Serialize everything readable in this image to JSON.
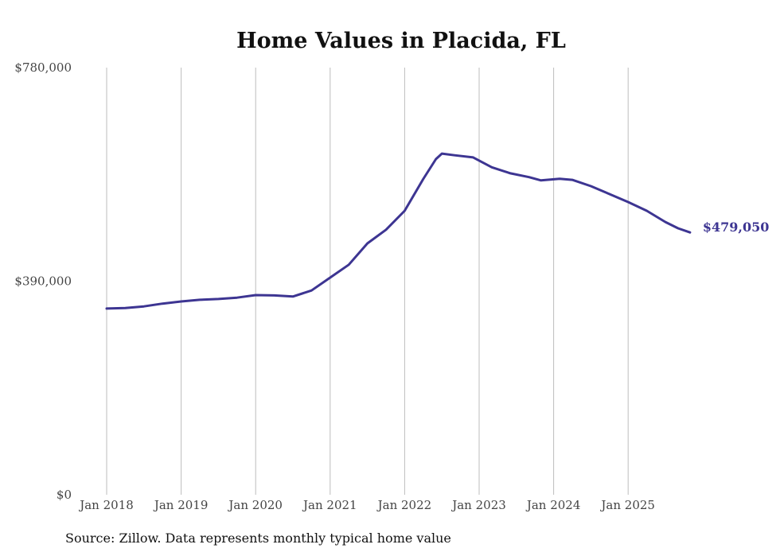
{
  "chart_data": {
    "type": "line",
    "title": "Home Values in Placida, FL",
    "xlabel": "",
    "ylabel": "",
    "ylim": [
      0,
      780000
    ],
    "y_ticks": [
      "$0",
      "$390,000",
      "$780,000"
    ],
    "y_tick_values": [
      0,
      390000,
      780000
    ],
    "x_ticks": [
      "Jan 2018",
      "Jan 2019",
      "Jan 2020",
      "Jan 2021",
      "Jan 2022",
      "Jan 2023",
      "Jan 2024",
      "Jan 2025"
    ],
    "x_tick_values": [
      2018,
      2019,
      2020,
      2021,
      2022,
      2023,
      2024,
      2025
    ],
    "xlim": [
      2018,
      2026
    ],
    "grid": "vertical",
    "series": [
      {
        "name": "Typical home value",
        "color": "#3d3592",
        "x": [
          2018.0,
          2018.25,
          2018.5,
          2018.75,
          2019.0,
          2019.25,
          2019.5,
          2019.75,
          2020.0,
          2020.25,
          2020.5,
          2020.75,
          2021.0,
          2021.25,
          2021.5,
          2021.75,
          2022.0,
          2022.25,
          2022.42,
          2022.5,
          2022.67,
          2022.92,
          2023.17,
          2023.42,
          2023.67,
          2023.83,
          2024.08,
          2024.25,
          2024.5,
          2024.75,
          2025.0,
          2025.25,
          2025.5,
          2025.67,
          2025.83
        ],
        "values": [
          340000,
          341000,
          344000,
          349000,
          353000,
          356000,
          357500,
          360000,
          364600,
          364000,
          362000,
          373000,
          396500,
          420000,
          459000,
          484000,
          518500,
          576600,
          613000,
          623000,
          620000,
          616000,
          598000,
          587000,
          580000,
          574000,
          577000,
          575000,
          563600,
          549000,
          534500,
          518500,
          498000,
          486600,
          479050
        ]
      }
    ],
    "end_label": "$479,050",
    "source": "Source: Zillow. Data represents monthly typical home value"
  }
}
